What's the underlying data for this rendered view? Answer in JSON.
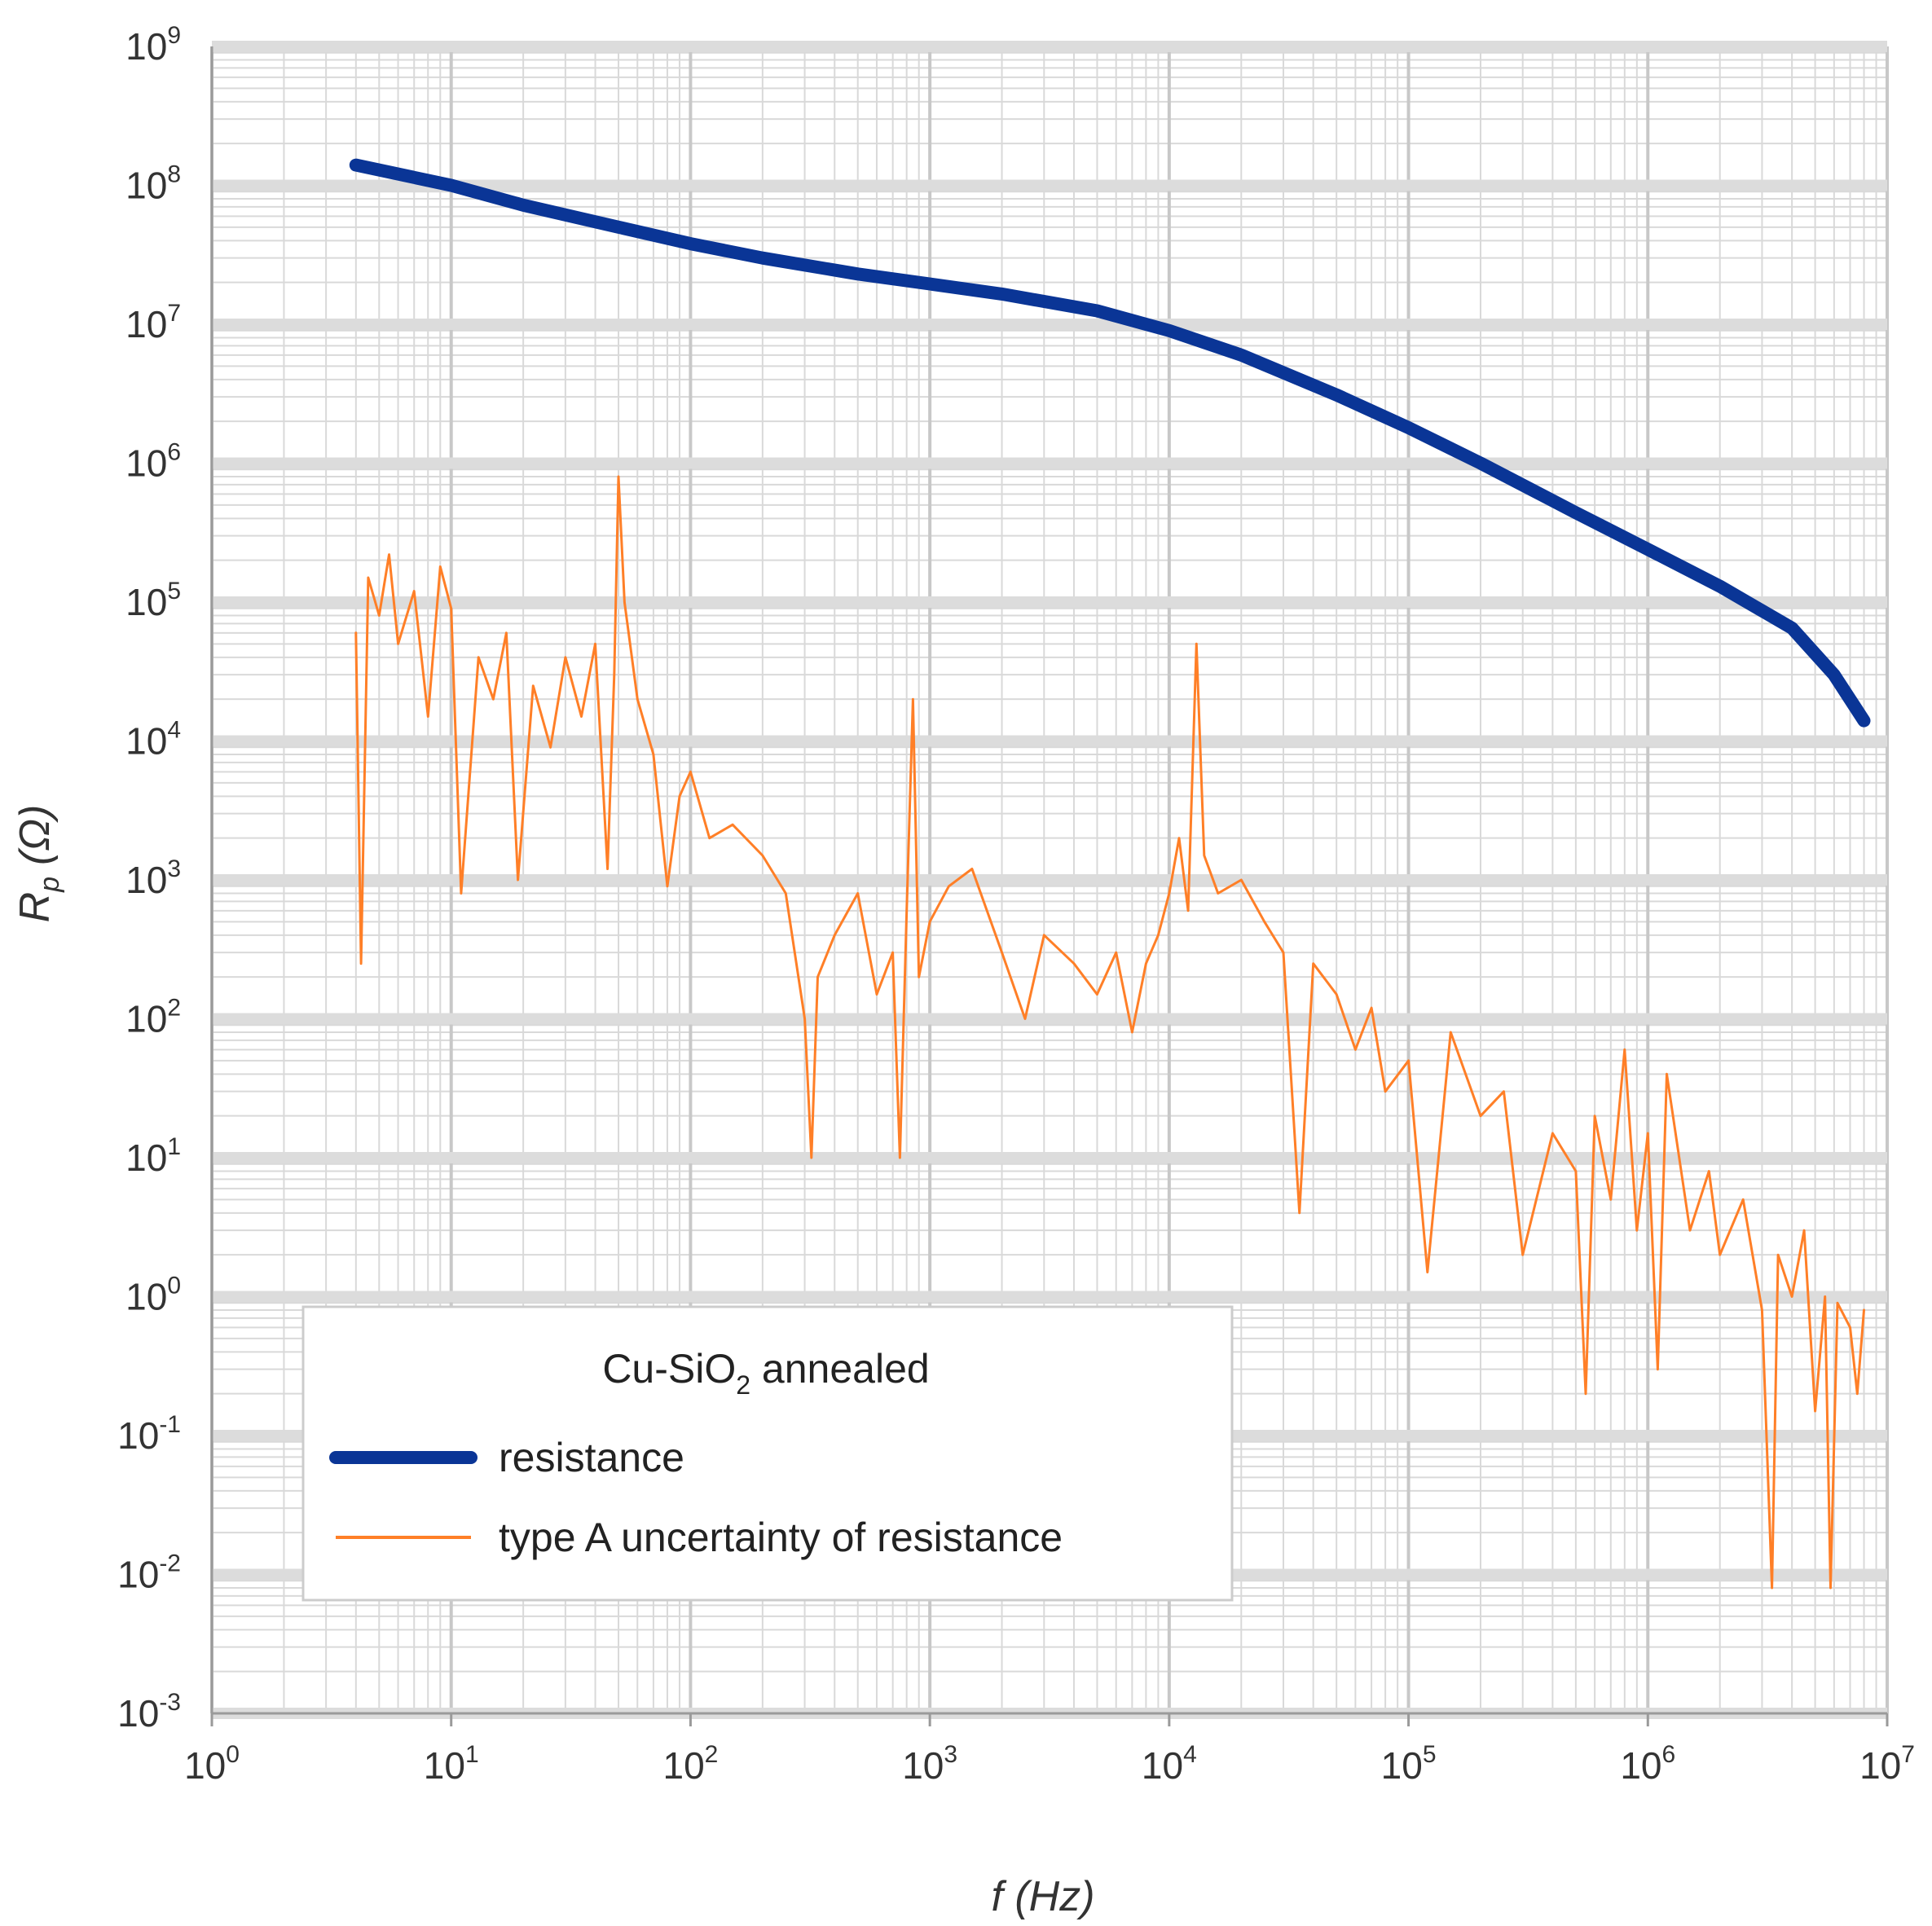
{
  "chart_data": {
    "type": "line",
    "x_scale": "log",
    "y_scale": "log",
    "xlim": [
      1,
      10000000
    ],
    "ylim": [
      0.001,
      1000000000
    ],
    "x_ticks": [
      {
        "base": "10",
        "exp": "0"
      },
      {
        "base": "10",
        "exp": "1"
      },
      {
        "base": "10",
        "exp": "2"
      },
      {
        "base": "10",
        "exp": "3"
      },
      {
        "base": "10",
        "exp": "4"
      },
      {
        "base": "10",
        "exp": "5"
      },
      {
        "base": "10",
        "exp": "6"
      },
      {
        "base": "10",
        "exp": "7"
      }
    ],
    "y_ticks": [
      {
        "base": "10",
        "exp": "-3"
      },
      {
        "base": "10",
        "exp": "-2"
      },
      {
        "base": "10",
        "exp": "-1"
      },
      {
        "base": "10",
        "exp": "0"
      },
      {
        "base": "10",
        "exp": "1"
      },
      {
        "base": "10",
        "exp": "2"
      },
      {
        "base": "10",
        "exp": "3"
      },
      {
        "base": "10",
        "exp": "4"
      },
      {
        "base": "10",
        "exp": "5"
      },
      {
        "base": "10",
        "exp": "6"
      },
      {
        "base": "10",
        "exp": "7"
      },
      {
        "base": "10",
        "exp": "8"
      },
      {
        "base": "10",
        "exp": "9"
      }
    ],
    "xlabel": "f (Hz)",
    "ylabel_main": "R",
    "ylabel_sub": "p",
    "ylabel_unit": "(Ω)",
    "grid": true,
    "legend": {
      "title_main": "Cu-SiO",
      "title_sub": "2",
      "title_rest": " annealed",
      "placement": "bottom-left"
    },
    "series": [
      {
        "name": "resistance",
        "color": "#0a3596",
        "points": [
          [
            4,
            140000000
          ],
          [
            10,
            100000000
          ],
          [
            20,
            72000000
          ],
          [
            50,
            50000000
          ],
          [
            100,
            38000000
          ],
          [
            200,
            30000000
          ],
          [
            500,
            23000000
          ],
          [
            1000,
            19500000
          ],
          [
            2000,
            16500000
          ],
          [
            5000,
            12500000
          ],
          [
            10000,
            9000000
          ],
          [
            20000,
            6000000
          ],
          [
            50000,
            3100000
          ],
          [
            100000,
            1800000
          ],
          [
            200000,
            1000000
          ],
          [
            500000,
            440000
          ],
          [
            1000000,
            240000
          ],
          [
            2000000,
            130000
          ],
          [
            4000000,
            65000
          ],
          [
            6000000,
            30000
          ],
          [
            8000000,
            14000
          ]
        ]
      },
      {
        "name": "type A uncertainty of resistance",
        "color": "#ff7f27",
        "points": [
          [
            4,
            60000
          ],
          [
            4.2,
            250
          ],
          [
            4.5,
            150000
          ],
          [
            5,
            80000
          ],
          [
            5.5,
            220000
          ],
          [
            6,
            50000
          ],
          [
            7,
            120000
          ],
          [
            8,
            15000
          ],
          [
            9,
            180000
          ],
          [
            10,
            90000
          ],
          [
            11,
            800
          ],
          [
            13,
            40000
          ],
          [
            15,
            20000
          ],
          [
            17,
            60000
          ],
          [
            19,
            1000
          ],
          [
            22,
            25000
          ],
          [
            26,
            9000
          ],
          [
            30,
            40000
          ],
          [
            35,
            15000
          ],
          [
            40,
            50000
          ],
          [
            45,
            1200
          ],
          [
            48,
            30000
          ],
          [
            50,
            800000
          ],
          [
            53,
            100000
          ],
          [
            60,
            20000
          ],
          [
            70,
            8000
          ],
          [
            80,
            900
          ],
          [
            90,
            4000
          ],
          [
            100,
            6000
          ],
          [
            120,
            2000
          ],
          [
            150,
            2500
          ],
          [
            200,
            1500
          ],
          [
            250,
            800
          ],
          [
            300,
            100
          ],
          [
            320,
            10
          ],
          [
            340,
            200
          ],
          [
            400,
            400
          ],
          [
            500,
            800
          ],
          [
            600,
            150
          ],
          [
            700,
            300
          ],
          [
            750,
            10
          ],
          [
            800,
            600
          ],
          [
            850,
            20000
          ],
          [
            900,
            200
          ],
          [
            1000,
            500
          ],
          [
            1200,
            900
          ],
          [
            1500,
            1200
          ],
          [
            2000,
            300
          ],
          [
            2500,
            100
          ],
          [
            3000,
            400
          ],
          [
            4000,
            250
          ],
          [
            5000,
            150
          ],
          [
            6000,
            300
          ],
          [
            7000,
            80
          ],
          [
            8000,
            250
          ],
          [
            9000,
            400
          ],
          [
            10000,
            800
          ],
          [
            11000,
            2000
          ],
          [
            12000,
            600
          ],
          [
            13000,
            50000
          ],
          [
            14000,
            1500
          ],
          [
            16000,
            800
          ],
          [
            20000,
            1000
          ],
          [
            25000,
            500
          ],
          [
            30000,
            300
          ],
          [
            35000,
            4
          ],
          [
            40000,
            250
          ],
          [
            50000,
            150
          ],
          [
            60000,
            60
          ],
          [
            70000,
            120
          ],
          [
            80000,
            30
          ],
          [
            100000,
            50
          ],
          [
            120000,
            1.5
          ],
          [
            150000,
            80
          ],
          [
            200000,
            20
          ],
          [
            250000,
            30
          ],
          [
            300000,
            2
          ],
          [
            400000,
            15
          ],
          [
            500000,
            8
          ],
          [
            550000,
            0.2
          ],
          [
            600000,
            20
          ],
          [
            700000,
            5
          ],
          [
            800000,
            60
          ],
          [
            900000,
            3
          ],
          [
            1000000,
            15
          ],
          [
            1100000,
            0.3
          ],
          [
            1200000,
            40
          ],
          [
            1500000,
            3
          ],
          [
            1800000,
            8
          ],
          [
            2000000,
            2
          ],
          [
            2500000,
            5
          ],
          [
            3000000,
            0.8
          ],
          [
            3300000,
            0.008
          ],
          [
            3500000,
            2
          ],
          [
            4000000,
            1
          ],
          [
            4500000,
            3
          ],
          [
            5000000,
            0.15
          ],
          [
            5500000,
            1
          ],
          [
            5800000,
            0.008
          ],
          [
            6200000,
            0.9
          ],
          [
            7000000,
            0.6
          ],
          [
            7500000,
            0.2
          ],
          [
            8000000,
            0.8
          ]
        ]
      }
    ]
  }
}
